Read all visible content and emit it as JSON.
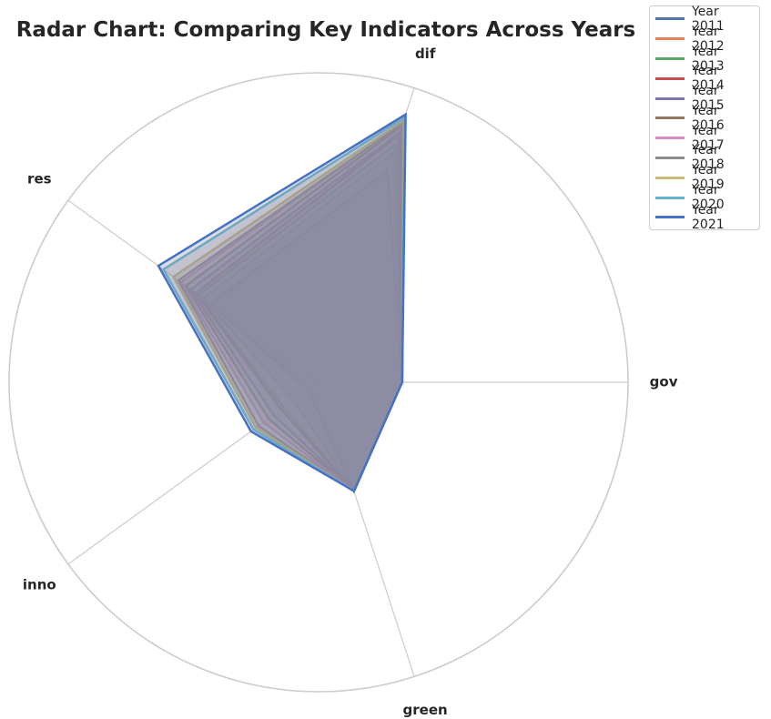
{
  "chart_data": {
    "type": "radar",
    "title": "Radar Chart: Comparing Key Indicators Across Years",
    "axes": [
      "gov",
      "dif",
      "res",
      "inno",
      "green"
    ],
    "rmax": 1.0,
    "grid": true,
    "legend_position": "top-right",
    "fill_color": "#8a8ca3",
    "series": [
      {
        "name": "Year 2011",
        "color": "#4c72b0",
        "values": [
          0.27,
          0.72,
          0.43,
          0.04,
          0.37
        ]
      },
      {
        "name": "Year 2012",
        "color": "#dd8452",
        "values": [
          0.27,
          0.78,
          0.46,
          0.1,
          0.37
        ]
      },
      {
        "name": "Year 2013",
        "color": "#55a868",
        "values": [
          0.27,
          0.81,
          0.48,
          0.14,
          0.37
        ]
      },
      {
        "name": "Year 2014",
        "color": "#c44e52",
        "values": [
          0.27,
          0.84,
          0.49,
          0.15,
          0.37
        ]
      },
      {
        "name": "Year 2015",
        "color": "#8172b3",
        "values": [
          0.27,
          0.85,
          0.51,
          0.18,
          0.37
        ]
      },
      {
        "name": "Year 2016",
        "color": "#937860",
        "values": [
          0.27,
          0.87,
          0.53,
          0.2,
          0.37
        ]
      },
      {
        "name": "Year 2017",
        "color": "#da8bc3",
        "values": [
          0.27,
          0.88,
          0.55,
          0.22,
          0.37
        ]
      },
      {
        "name": "Year 2018",
        "color": "#8c8c8c",
        "values": [
          0.27,
          0.88,
          0.56,
          0.24,
          0.37
        ]
      },
      {
        "name": "Year 2019",
        "color": "#ccb974",
        "values": [
          0.27,
          0.89,
          0.58,
          0.25,
          0.37
        ]
      },
      {
        "name": "Year 2020",
        "color": "#64b5cd",
        "values": [
          0.27,
          0.9,
          0.62,
          0.26,
          0.37
        ]
      },
      {
        "name": "Year 2021",
        "color": "#4472c4",
        "values": [
          0.27,
          0.91,
          0.64,
          0.27,
          0.37
        ]
      }
    ]
  }
}
